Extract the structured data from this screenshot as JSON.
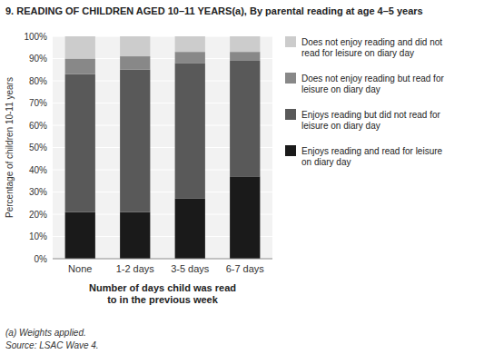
{
  "chart_data": {
    "type": "bar",
    "stacked": true,
    "title": "9.  READING OF CHILDREN AGED 10–11 YEARS(a), By parental reading at age 4–5 years",
    "categories": [
      "None",
      "1-2 days",
      "3-5 days",
      "6-7 days"
    ],
    "series": [
      {
        "name": "Enjoys reading and read for leisure\non diary day",
        "color": "#1a1a1a",
        "values": [
          21,
          21,
          27,
          37
        ]
      },
      {
        "name": "Enjoys reading but did not read for\nleisure on diary day",
        "color": "#595959",
        "values": [
          62,
          64,
          61,
          52
        ]
      },
      {
        "name": "Does not enjoy reading but read for\nleisure on diary day",
        "color": "#888888",
        "values": [
          7,
          6,
          5,
          4
        ]
      },
      {
        "name": "Does not enjoy reading and did not\nread for leisure on diary day",
        "color": "#cccccc",
        "values": [
          10,
          9,
          7,
          7
        ]
      }
    ],
    "ylabel": "Percentage of children 10-11 years",
    "xlabel": "Number of days child was read\nto in the previous week",
    "ylim": [
      0,
      100
    ],
    "yticks": [
      {
        "value": 0,
        "label": "0%"
      },
      {
        "value": 10,
        "label": "10%"
      },
      {
        "value": 20,
        "label": "20%"
      },
      {
        "value": 30,
        "label": "30%"
      },
      {
        "value": 40,
        "label": "40%"
      },
      {
        "value": 50,
        "label": "50%"
      },
      {
        "value": 60,
        "label": "60%"
      },
      {
        "value": 70,
        "label": "70%"
      },
      {
        "value": 80,
        "label": "80%"
      },
      {
        "value": 90,
        "label": "90%"
      },
      {
        "value": 100,
        "label": "100%"
      }
    ],
    "grid": true,
    "legend": "right",
    "annotations": [
      "(a) Weights applied.",
      "Source: LSAC Wave 4."
    ]
  }
}
